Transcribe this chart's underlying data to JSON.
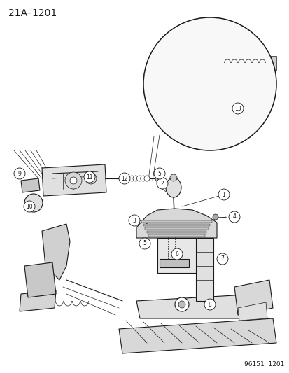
{
  "title": "21A–1201",
  "footer": "96151  1201",
  "bg_color": "#ffffff",
  "line_color": "#1a1a1a",
  "title_fontsize": 10,
  "footer_fontsize": 6.5,
  "fig_width": 4.14,
  "fig_height": 5.33,
  "dpi": 100
}
